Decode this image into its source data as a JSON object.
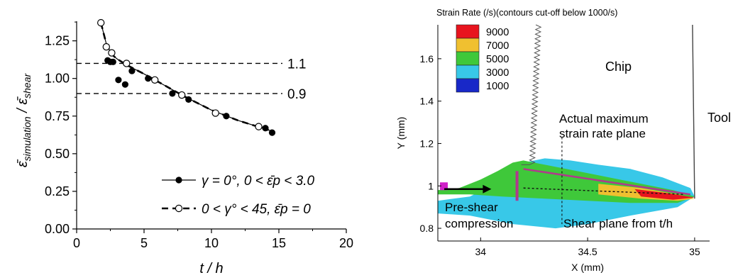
{
  "chart_data": [
    {
      "type": "scatter",
      "title": "",
      "xlabel": "t / h",
      "ylabel_main": "ε̄",
      "ylabel_sub1": "simulation",
      "ylabel_mid": " / ε̄",
      "ylabel_sub2": "shear",
      "xlim": [
        0,
        20
      ],
      "ylim": [
        0,
        1.38
      ],
      "xticks": [
        "0",
        "5",
        "10",
        "15",
        "20"
      ],
      "yticks": [
        "0.00",
        "0.25",
        "0.50",
        "0.75",
        "1.00",
        "1.25"
      ],
      "xtick_values": [
        0,
        5,
        10,
        15,
        20
      ],
      "ytick_values": [
        0,
        0.25,
        0.5,
        0.75,
        1.0,
        1.25
      ],
      "reference_lines": [
        {
          "y": 1.1,
          "label": "1.1"
        },
        {
          "y": 0.9,
          "label": "0.9"
        }
      ],
      "series": [
        {
          "marker": "filled-circle",
          "line": "solid",
          "legend_text": "γ = 0°, 0 < ε̄p < 3.0",
          "points": [
            [
              2.3,
              1.12
            ],
            [
              2.5,
              1.11
            ],
            [
              2.7,
              1.11
            ],
            [
              3.1,
              0.99
            ],
            [
              3.6,
              0.96
            ],
            [
              4.1,
              1.05
            ],
            [
              5.3,
              1.0
            ],
            [
              7.1,
              0.9
            ],
            [
              8.3,
              0.86
            ],
            [
              11.1,
              0.75
            ],
            [
              14.0,
              0.67
            ],
            [
              14.5,
              0.64
            ]
          ]
        },
        {
          "marker": "open-circle",
          "line": "dashed",
          "legend_text": "0 < γ° < 45, ε̄p = 0",
          "points": [
            [
              1.8,
              1.37
            ],
            [
              2.2,
              1.21
            ],
            [
              2.6,
              1.17
            ],
            [
              3.7,
              1.1
            ],
            [
              5.8,
              0.99
            ],
            [
              7.8,
              0.89
            ],
            [
              10.3,
              0.77
            ],
            [
              13.5,
              0.68
            ]
          ]
        }
      ],
      "line_path": [
        [
          1.8,
          1.37
        ],
        [
          2.2,
          1.23
        ],
        [
          2.6,
          1.16
        ],
        [
          3.0,
          1.13
        ],
        [
          3.7,
          1.09
        ],
        [
          5.0,
          1.03
        ],
        [
          6.0,
          0.98
        ],
        [
          7.0,
          0.93
        ],
        [
          8.0,
          0.88
        ],
        [
          10.0,
          0.79
        ],
        [
          12.0,
          0.72
        ],
        [
          14.5,
          0.65
        ]
      ],
      "legend_position": "bottom-right"
    },
    {
      "type": "heatmap",
      "title": "Strain Rate (/s)(contours cut-off below 1000/s)",
      "xlabel": "X (mm)",
      "ylabel": "Y (mm)",
      "xlim": [
        33.8,
        35.07
      ],
      "ylim": [
        0.74,
        1.76
      ],
      "xticks": [
        "34",
        "34.5",
        "35"
      ],
      "xtick_values": [
        34,
        34.5,
        35
      ],
      "yticks": [
        "0.8",
        "1",
        "1.2",
        "1.4",
        "1.6"
      ],
      "ytick_values": [
        0.8,
        1.0,
        1.2,
        1.4,
        1.6
      ],
      "legend": [
        {
          "label": "9000",
          "color": "#e8141e"
        },
        {
          "label": "7000",
          "color": "#f0c030"
        },
        {
          "label": "5000",
          "color": "#3fc83a"
        },
        {
          "label": "3000",
          "color": "#38c8e8"
        },
        {
          "label": "1000",
          "color": "#1828c8"
        }
      ],
      "annotations": {
        "chip": "Chip",
        "tool": "Tool",
        "actual_line1": "Actual maximum",
        "actual_line2": "strain rate plane",
        "pre_line1": "Pre-shear",
        "pre_line2": "compression",
        "shear_plane": "Shear plane from t/h"
      }
    }
  ]
}
